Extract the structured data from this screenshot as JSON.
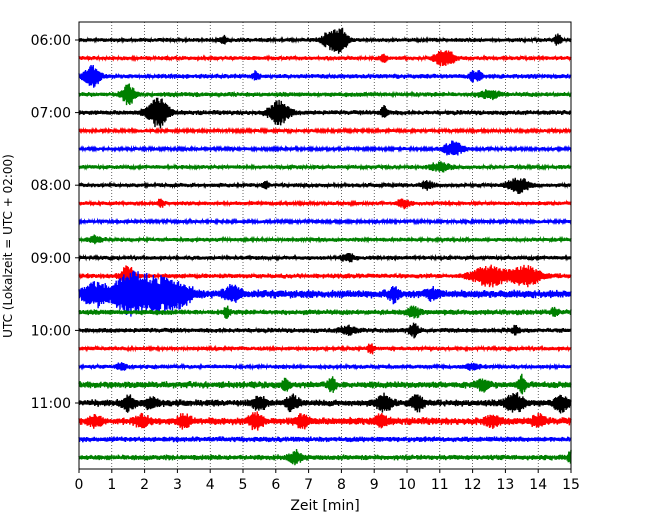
{
  "chart_data": {
    "type": "line",
    "title": "",
    "xlabel": "Zeit  [min]",
    "ylabel": "UTC (Lokalzeit = UTC + 02:00)",
    "xlim": [
      0,
      15
    ],
    "x_ticks": [
      0,
      1,
      2,
      3,
      4,
      5,
      6,
      7,
      8,
      9,
      10,
      11,
      12,
      13,
      14,
      15
    ],
    "y_tick_labels": [
      "06:00",
      "07:00",
      "08:00",
      "09:00",
      "10:00",
      "11:00"
    ],
    "y_tick_rows": [
      0,
      4,
      8,
      12,
      16,
      20
    ],
    "grid": "vertical-dotted",
    "trace_colors": [
      "#000000",
      "#ff0000",
      "#0000ff",
      "#008000"
    ],
    "trace_interval_minutes": 15,
    "trace_count": 24,
    "traces": [
      {
        "start": "06:00",
        "noise": 0.6,
        "events": [
          [
            4.4,
            1.2,
            0.1
          ],
          [
            7.7,
            2.6,
            0.3
          ],
          [
            8.0,
            2.8,
            0.2
          ],
          [
            14.6,
            1.8,
            0.1
          ]
        ]
      },
      {
        "start": "06:15",
        "noise": 0.6,
        "events": [
          [
            9.3,
            1.2,
            0.1
          ],
          [
            11.0,
            1.8,
            0.2
          ],
          [
            11.3,
            1.8,
            0.2
          ]
        ]
      },
      {
        "start": "06:30",
        "noise": 0.7,
        "events": [
          [
            0.4,
            3.0,
            0.25
          ],
          [
            5.4,
            1.2,
            0.1
          ],
          [
            12.0,
            1.4,
            0.1
          ],
          [
            12.2,
            1.4,
            0.1
          ]
        ]
      },
      {
        "start": "06:45",
        "noise": 0.7,
        "events": [
          [
            1.5,
            3.0,
            0.2
          ],
          [
            12.5,
            1.2,
            0.3
          ]
        ]
      },
      {
        "start": "07:00",
        "noise": 0.7,
        "events": [
          [
            2.3,
            2.2,
            0.3
          ],
          [
            2.5,
            3.2,
            0.25
          ],
          [
            6.1,
            3.6,
            0.3
          ],
          [
            9.3,
            2.0,
            0.1
          ]
        ]
      },
      {
        "start": "07:15",
        "noise": 0.5,
        "events": []
      },
      {
        "start": "07:30",
        "noise": 0.5,
        "events": [
          [
            11.4,
            2.2,
            0.3
          ]
        ]
      },
      {
        "start": "07:45",
        "noise": 0.6,
        "events": [
          [
            11.0,
            1.2,
            0.3
          ]
        ]
      },
      {
        "start": "08:00",
        "noise": 0.6,
        "events": [
          [
            5.7,
            1.2,
            0.1
          ],
          [
            10.6,
            1.2,
            0.2
          ],
          [
            13.4,
            2.2,
            0.35
          ]
        ]
      },
      {
        "start": "08:15",
        "noise": 0.6,
        "events": [
          [
            2.5,
            1.2,
            0.1
          ],
          [
            9.9,
            1.2,
            0.2
          ]
        ]
      },
      {
        "start": "08:30",
        "noise": 0.5,
        "events": []
      },
      {
        "start": "08:45",
        "noise": 0.6,
        "events": [
          [
            0.5,
            1.0,
            0.2
          ]
        ]
      },
      {
        "start": "09:00",
        "noise": 0.6,
        "events": [
          [
            8.2,
            1.2,
            0.2
          ]
        ]
      },
      {
        "start": "09:15",
        "noise": 0.7,
        "events": [
          [
            1.5,
            3.2,
            0.2
          ],
          [
            12.5,
            3.0,
            0.5
          ],
          [
            13.6,
            3.0,
            0.5
          ]
        ]
      },
      {
        "start": "09:30",
        "noise": 1.2,
        "events": [
          [
            0.5,
            3.0,
            0.4
          ],
          [
            1.5,
            4.8,
            0.5
          ],
          [
            2.3,
            4.6,
            0.7
          ],
          [
            3.0,
            2.8,
            0.4
          ],
          [
            4.7,
            2.2,
            0.25
          ],
          [
            9.6,
            2.0,
            0.15
          ],
          [
            10.8,
            1.6,
            0.2
          ]
        ]
      },
      {
        "start": "09:45",
        "noise": 0.8,
        "events": [
          [
            4.5,
            1.6,
            0.1
          ],
          [
            10.2,
            1.6,
            0.2
          ],
          [
            14.5,
            1.4,
            0.1
          ]
        ]
      },
      {
        "start": "10:00",
        "noise": 0.7,
        "events": [
          [
            8.2,
            1.2,
            0.25
          ],
          [
            10.2,
            2.0,
            0.15
          ],
          [
            13.3,
            1.2,
            0.1
          ]
        ]
      },
      {
        "start": "10:15",
        "noise": 0.6,
        "events": [
          [
            8.9,
            1.4,
            0.1
          ]
        ]
      },
      {
        "start": "10:30",
        "noise": 0.6,
        "events": [
          [
            1.3,
            1.2,
            0.15
          ],
          [
            12.0,
            1.0,
            0.2
          ]
        ]
      },
      {
        "start": "10:45",
        "noise": 1.0,
        "events": [
          [
            6.3,
            2.0,
            0.1
          ],
          [
            7.7,
            2.6,
            0.1
          ],
          [
            12.3,
            1.4,
            0.2
          ],
          [
            13.5,
            2.6,
            0.1
          ]
        ]
      },
      {
        "start": "11:00",
        "noise": 1.0,
        "events": [
          [
            1.5,
            2.0,
            0.2
          ],
          [
            2.2,
            1.8,
            0.2
          ],
          [
            5.5,
            2.2,
            0.2
          ],
          [
            6.5,
            2.0,
            0.2
          ],
          [
            9.3,
            2.4,
            0.25
          ],
          [
            10.3,
            2.2,
            0.2
          ],
          [
            13.3,
            2.6,
            0.3
          ],
          [
            14.7,
            2.4,
            0.2
          ]
        ]
      },
      {
        "start": "11:15",
        "noise": 1.1,
        "events": [
          [
            0.5,
            1.6,
            0.2
          ],
          [
            1.9,
            1.8,
            0.2
          ],
          [
            3.2,
            2.0,
            0.2
          ],
          [
            5.4,
            2.4,
            0.2
          ],
          [
            6.8,
            1.8,
            0.2
          ],
          [
            9.2,
            1.6,
            0.2
          ],
          [
            12.6,
            1.6,
            0.2
          ],
          [
            14.0,
            1.6,
            0.2
          ]
        ]
      },
      {
        "start": "11:30",
        "noise": 0.8,
        "events": []
      },
      {
        "start": "11:45",
        "noise": 0.8,
        "events": [
          [
            6.6,
            1.8,
            0.2
          ],
          [
            15.0,
            1.8,
            0.1
          ]
        ]
      }
    ]
  }
}
